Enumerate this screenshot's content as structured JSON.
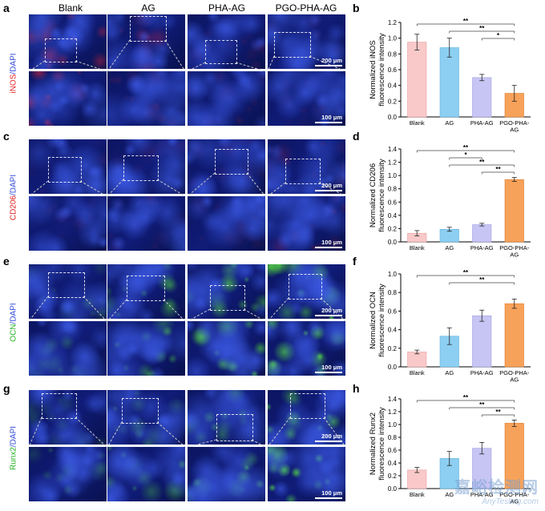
{
  "columns": [
    "Blank",
    "AG",
    "PHA-AG",
    "PGO-PHA-AG"
  ],
  "panel_letters": {
    "a": "a",
    "b": "b",
    "c": "c",
    "d": "d",
    "e": "e",
    "f": "f",
    "g": "g",
    "h": "h"
  },
  "row_labels": [
    {
      "marker": "iNOS",
      "sep": "/",
      "dapi": "DAPI",
      "marker_color": "#e52222"
    },
    {
      "marker": "CD206",
      "sep": "/",
      "dapi": "DAPI",
      "marker_color": "#e52222"
    },
    {
      "marker": "OCN",
      "sep": "/",
      "dapi": "DAPI",
      "marker_color": "#22b222"
    },
    {
      "marker": "Runx2",
      "sep": "/",
      "dapi": "DAPI",
      "marker_color": "#22b222"
    }
  ],
  "scale_labels": {
    "top": "200 μm",
    "bottom": "100 μm"
  },
  "colors": {
    "blank": "#f9c9c9",
    "ag": "#8dcff2",
    "pha": "#c7c5f3",
    "pgo": "#f7a25a",
    "dapi_bg": "#0a1a6a"
  },
  "chart_data": [
    {
      "type": "bar",
      "panel": "b",
      "categories": [
        "Blank",
        "AG",
        "PHA-AG",
        "PGO-PHA-AG"
      ],
      "category_lines": [
        [
          "Blank"
        ],
        [
          "AG"
        ],
        [
          "PHA-AG"
        ],
        [
          "PGO-PHA-",
          "AG"
        ]
      ],
      "values": [
        0.95,
        0.88,
        0.5,
        0.3
      ],
      "errors": [
        0.1,
        0.12,
        0.04,
        0.1
      ],
      "ylabel_lines": [
        "Normalized iNOS",
        "fluorescence intensity"
      ],
      "ylim": [
        0,
        1.2
      ],
      "yticks": [
        "0.0",
        "0.2",
        "0.4",
        "0.6",
        "0.8",
        "1.0",
        "1.2"
      ],
      "significance": [
        {
          "from": 0,
          "to": 3,
          "label": "**"
        },
        {
          "from": 1,
          "to": 3,
          "label": "**"
        },
        {
          "from": 2,
          "to": 3,
          "label": "*"
        }
      ]
    },
    {
      "type": "bar",
      "panel": "d",
      "categories": [
        "Blank",
        "AG",
        "PHA-AG",
        "PGO-PHA-AG"
      ],
      "category_lines": [
        [
          "Blank"
        ],
        [
          "AG"
        ],
        [
          "PHA-AG"
        ],
        [
          "PGO-PHA-",
          "AG"
        ]
      ],
      "values": [
        0.13,
        0.19,
        0.26,
        0.94
      ],
      "errors": [
        0.04,
        0.03,
        0.02,
        0.03
      ],
      "ylabel_lines": [
        "Normalized CD206",
        "fluorescence intensity"
      ],
      "ylim": [
        0,
        1.4
      ],
      "yticks": [
        "0.0",
        "0.2",
        "0.4",
        "0.6",
        "0.8",
        "1.0",
        "1.2",
        "1.4"
      ],
      "significance": [
        {
          "from": 0,
          "to": 3,
          "label": "**"
        },
        {
          "from": 1,
          "to": 2,
          "label": "*"
        },
        {
          "from": 1,
          "to": 3,
          "label": "**"
        },
        {
          "from": 2,
          "to": 3,
          "label": "**"
        }
      ]
    },
    {
      "type": "bar",
      "panel": "f",
      "categories": [
        "Blank",
        "AG",
        "PHA-AG",
        "PGO-PHA-AG"
      ],
      "category_lines": [
        [
          "Blank"
        ],
        [
          "AG"
        ],
        [
          "PHA-AG"
        ],
        [
          "PGO-PHA-",
          "AG"
        ]
      ],
      "values": [
        0.16,
        0.33,
        0.55,
        0.68
      ],
      "errors": [
        0.02,
        0.09,
        0.06,
        0.05
      ],
      "ylabel_lines": [
        "Normalized OCN",
        "fluorescence intensity"
      ],
      "ylim": [
        0,
        1.0
      ],
      "yticks": [
        "0.0",
        "0.2",
        "0.4",
        "0.6",
        "0.8",
        "1.0"
      ],
      "significance": [
        {
          "from": 0,
          "to": 3,
          "label": "**"
        },
        {
          "from": 1,
          "to": 3,
          "label": "**"
        }
      ]
    },
    {
      "type": "bar",
      "panel": "h",
      "categories": [
        "Blank",
        "AG",
        "PHA-AG",
        "PGO-PHA-AG"
      ],
      "category_lines": [
        [
          "Blank"
        ],
        [
          "AG"
        ],
        [
          "PHA-AG"
        ],
        [
          "PGO-PHA-",
          "AG"
        ]
      ],
      "values": [
        0.29,
        0.47,
        0.63,
        1.02
      ],
      "errors": [
        0.04,
        0.11,
        0.09,
        0.05
      ],
      "ylabel_lines": [
        "Normalized Runx2",
        "fluorescence intensity"
      ],
      "ylim": [
        0,
        1.4
      ],
      "yticks": [
        "0.0",
        "0.2",
        "0.4",
        "0.6",
        "0.8",
        "1.0",
        "1.2",
        "1.4"
      ],
      "significance": [
        {
          "from": 0,
          "to": 3,
          "label": "**"
        },
        {
          "from": 1,
          "to": 3,
          "label": "**"
        },
        {
          "from": 2,
          "to": 3,
          "label": "**"
        }
      ]
    }
  ],
  "watermark": {
    "line1": "嘉峪检测网",
    "line2": "AnyTesting.com"
  }
}
